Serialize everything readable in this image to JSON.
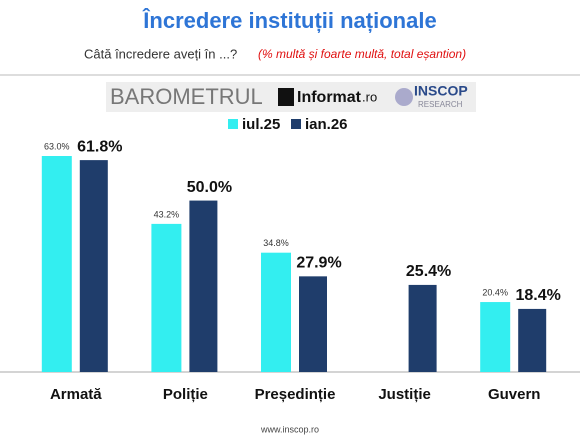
{
  "chart_data": {
    "type": "bar",
    "title": "Încredere instituții naționale",
    "subtitle": "Câtă încredere aveți în ...?",
    "note": "(% multă și foarte multă, total eșantion)",
    "logos": [
      "BAROMETRUL",
      "Informat",
      ".ro",
      "INSCOP",
      "RESEARCH"
    ],
    "footer": "www.inscop.ro",
    "categories": [
      "Armată",
      "Poliție",
      "Președinție",
      "Justiție",
      "Guvern"
    ],
    "series": [
      {
        "name": "iul.25",
        "color": "#33eef0",
        "values": [
          63.0,
          43.2,
          34.8,
          null,
          20.4
        ],
        "value_labels": [
          "63.0%",
          "43.2%",
          "34.8%",
          null,
          "20.4%"
        ]
      },
      {
        "name": "ian.26",
        "color": "#1f3d6b",
        "values": [
          61.8,
          50.0,
          27.9,
          25.4,
          18.4
        ],
        "value_labels": [
          "61.8%",
          "50.0%",
          "27.9%",
          "25.4%",
          "18.4%"
        ]
      }
    ],
    "ylim": [
      0,
      70
    ]
  }
}
